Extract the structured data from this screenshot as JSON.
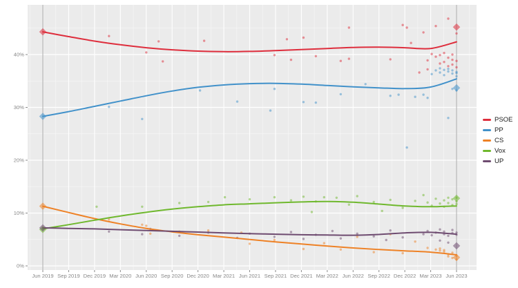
{
  "chart": {
    "panel_bg": "#ebebeb",
    "grid_major_color": "#ffffff",
    "grid_minor_color": "#ffffff",
    "election_vline_color": "#ababab",
    "axis_text_color": "#878787",
    "tick_mark_color": "#888888",
    "legend_text_color": "#1a1a1a"
  },
  "chart_data": {
    "type": "scatter",
    "subtype": "poll-scatter-with-smoothed-trend-lines",
    "title": "",
    "xlabel": "",
    "ylabel": "",
    "grid": true,
    "legend_position": "right",
    "x_ticks": [
      "Jun 2019",
      "Sep 2019",
      "Dec 2019",
      "Mar 2020",
      "Jun 2020",
      "Sep 2020",
      "Dec 2020",
      "Mar 2021",
      "Jun 2021",
      "Sep 2021",
      "Dec 2021",
      "Mar 2022",
      "Jun 2022",
      "Sep 2022",
      "Dec 2022",
      "Mar 2023",
      "Jun 2023"
    ],
    "y_ticks": [
      {
        "label": "0%",
        "value": 0
      },
      {
        "label": "10%",
        "value": 10
      },
      {
        "label": "20%",
        "value": 20
      },
      {
        "label": "30%",
        "value": 30
      },
      {
        "label": "40%",
        "value": 40
      }
    ],
    "y_minor_ticks": [
      5,
      15,
      25,
      35,
      45
    ],
    "ylim": [
      0,
      49.4
    ],
    "elections": [
      {
        "date_label": "Jun 2019",
        "x": 0
      },
      {
        "date_label": "Jun 2023",
        "x": 1
      }
    ],
    "series": [
      {
        "name": "PSOE",
        "color": "#de2d3c",
        "trend": [
          44.3,
          43.4,
          42.55,
          41.85,
          41.3,
          40.9,
          40.65,
          40.55,
          40.6,
          40.75,
          40.95,
          41.15,
          41.35,
          41.4,
          41.3,
          41.15,
          42.4
        ],
        "election_results": [
          44.3,
          45.2
        ],
        "points": [
          [
            0.16,
            43.5
          ],
          [
            0.25,
            40.4
          ],
          [
            0.28,
            42.5
          ],
          [
            0.29,
            38.7
          ],
          [
            0.39,
            42.6
          ],
          [
            0.56,
            39.9
          ],
          [
            0.59,
            42.9
          ],
          [
            0.6,
            39.0
          ],
          [
            0.63,
            43.2
          ],
          [
            0.66,
            39.7
          ],
          [
            0.72,
            38.8
          ],
          [
            0.74,
            45.1
          ],
          [
            0.74,
            39.2
          ],
          [
            0.84,
            39.1
          ],
          [
            0.87,
            45.6
          ],
          [
            0.88,
            45.1
          ],
          [
            0.89,
            42.2
          ],
          [
            0.91,
            36.6
          ],
          [
            0.92,
            44.2
          ],
          [
            0.93,
            37.2
          ],
          [
            0.93,
            38.9
          ],
          [
            0.94,
            40.1
          ],
          [
            0.95,
            39.6
          ],
          [
            0.95,
            45.4
          ],
          [
            0.96,
            38.3
          ],
          [
            0.96,
            39.9
          ],
          [
            0.97,
            38.6
          ],
          [
            0.97,
            40.3
          ],
          [
            0.98,
            37.8
          ],
          [
            0.98,
            39.4
          ],
          [
            0.98,
            46.8
          ],
          [
            0.99,
            38.1
          ],
          [
            0.99,
            39.0
          ],
          [
            0.99,
            40.0
          ],
          [
            1,
            37.6
          ],
          [
            1,
            38.8
          ],
          [
            1,
            44.0
          ]
        ]
      },
      {
        "name": "PP",
        "color": "#4191ca",
        "trend": [
          28.3,
          29.2,
          30.2,
          31.2,
          32.2,
          33.1,
          33.8,
          34.25,
          34.5,
          34.55,
          34.4,
          34.15,
          33.9,
          33.7,
          33.55,
          33.85,
          35.4
        ],
        "election_results": [
          28.3,
          33.7
        ],
        "points": [
          [
            0.16,
            30.1
          ],
          [
            0.24,
            27.8
          ],
          [
            0.38,
            33.2
          ],
          [
            0.47,
            31.1
          ],
          [
            0.55,
            29.4
          ],
          [
            0.56,
            33.5
          ],
          [
            0.63,
            31.0
          ],
          [
            0.66,
            30.9
          ],
          [
            0.72,
            32.5
          ],
          [
            0.78,
            34.4
          ],
          [
            0.84,
            32.2
          ],
          [
            0.86,
            32.4
          ],
          [
            0.88,
            22.4
          ],
          [
            0.9,
            32.0
          ],
          [
            0.92,
            32.4
          ],
          [
            0.93,
            31.8
          ],
          [
            0.94,
            36.3
          ],
          [
            0.95,
            37.0
          ],
          [
            0.96,
            36.6
          ],
          [
            0.96,
            37.4
          ],
          [
            0.97,
            36.1
          ],
          [
            0.97,
            37.1
          ],
          [
            0.98,
            36.8
          ],
          [
            0.98,
            28.0
          ],
          [
            0.98,
            37.3
          ],
          [
            0.99,
            36.4
          ],
          [
            0.99,
            37.0
          ],
          [
            0.99,
            33.5
          ],
          [
            1,
            36.7
          ],
          [
            1,
            35.9
          ],
          [
            1,
            33.2
          ],
          [
            1,
            36.5
          ]
        ]
      },
      {
        "name": "CS",
        "color": "#ee8125",
        "trend": [
          11.3,
          10.1,
          8.95,
          7.95,
          7.1,
          6.45,
          5.9,
          5.45,
          5.0,
          4.55,
          4.15,
          3.75,
          3.4,
          3.1,
          2.85,
          2.6,
          2.1
        ],
        "election_results": [
          11.3,
          1.6
        ],
        "points": [
          [
            0.16,
            8.8
          ],
          [
            0.24,
            7.8
          ],
          [
            0.25,
            7.6
          ],
          [
            0.26,
            6.1
          ],
          [
            0.33,
            6.5
          ],
          [
            0.4,
            6.7
          ],
          [
            0.48,
            6.3
          ],
          [
            0.5,
            4.2
          ],
          [
            0.56,
            4.9
          ],
          [
            0.63,
            3.2
          ],
          [
            0.68,
            4.3
          ],
          [
            0.72,
            3.1
          ],
          [
            0.76,
            5.5
          ],
          [
            0.8,
            2.6
          ],
          [
            0.84,
            6.0
          ],
          [
            0.87,
            2.4
          ],
          [
            0.9,
            4.6
          ],
          [
            0.93,
            3.4
          ],
          [
            0.95,
            3.1
          ],
          [
            0.96,
            2.9
          ],
          [
            0.96,
            3.3
          ],
          [
            0.97,
            2.7
          ],
          [
            0.97,
            3.0
          ],
          [
            0.98,
            2.2
          ],
          [
            0.98,
            1.8
          ],
          [
            0.99,
            2.5
          ],
          [
            0.99,
            1.5
          ],
          [
            1,
            1.9
          ],
          [
            1,
            1.2
          ]
        ]
      },
      {
        "name": "Vox",
        "color": "#6fb82d",
        "trend": [
          7.0,
          7.8,
          8.65,
          9.45,
          10.15,
          10.75,
          11.2,
          11.55,
          11.75,
          11.95,
          12.1,
          12.2,
          12.05,
          11.7,
          11.35,
          11.2,
          11.35
        ],
        "election_results": [
          6.9,
          12.8
        ],
        "points": [
          [
            0.13,
            11.2
          ],
          [
            0.24,
            11.2
          ],
          [
            0.33,
            11.9
          ],
          [
            0.4,
            12.1
          ],
          [
            0.44,
            13.0
          ],
          [
            0.5,
            12.6
          ],
          [
            0.56,
            13.0
          ],
          [
            0.6,
            12.4
          ],
          [
            0.63,
            13.1
          ],
          [
            0.65,
            10.2
          ],
          [
            0.66,
            12.2
          ],
          [
            0.68,
            13.0
          ],
          [
            0.71,
            12.9
          ],
          [
            0.74,
            11.6
          ],
          [
            0.76,
            13.2
          ],
          [
            0.8,
            12.1
          ],
          [
            0.82,
            10.4
          ],
          [
            0.84,
            12.5
          ],
          [
            0.87,
            11.0
          ],
          [
            0.9,
            12.3
          ],
          [
            0.92,
            13.4
          ],
          [
            0.93,
            12.0
          ],
          [
            0.94,
            11.4
          ],
          [
            0.95,
            12.7
          ],
          [
            0.96,
            11.8
          ],
          [
            0.97,
            12.4
          ],
          [
            0.97,
            11.2
          ],
          [
            0.98,
            12.9
          ],
          [
            0.98,
            11.9
          ],
          [
            0.99,
            12.6
          ],
          [
            0.99,
            11.5
          ],
          [
            1,
            12.2
          ],
          [
            1,
            12.9
          ],
          [
            1,
            11.7
          ]
        ]
      },
      {
        "name": "UP",
        "color": "#6e4b70",
        "trend": [
          7.2,
          7.1,
          7.0,
          6.85,
          6.7,
          6.55,
          6.4,
          6.25,
          6.1,
          6.0,
          5.9,
          5.85,
          5.8,
          5.95,
          6.25,
          6.35,
          6.0
        ],
        "election_results": [
          7.2,
          3.8
        ],
        "points": [
          [
            0.16,
            6.5
          ],
          [
            0.24,
            6.0
          ],
          [
            0.26,
            7.0
          ],
          [
            0.33,
            5.7
          ],
          [
            0.4,
            6.3
          ],
          [
            0.47,
            5.3
          ],
          [
            0.5,
            6.1
          ],
          [
            0.56,
            5.5
          ],
          [
            0.6,
            6.4
          ],
          [
            0.63,
            5.1
          ],
          [
            0.66,
            5.9
          ],
          [
            0.7,
            6.6
          ],
          [
            0.72,
            5.2
          ],
          [
            0.76,
            6.1
          ],
          [
            0.8,
            5.6
          ],
          [
            0.83,
            4.9
          ],
          [
            0.84,
            6.7
          ],
          [
            0.87,
            5.4
          ],
          [
            0.92,
            6.0
          ],
          [
            0.93,
            6.6
          ],
          [
            0.94,
            5.8
          ],
          [
            0.95,
            6.3
          ],
          [
            0.96,
            6.9
          ],
          [
            0.96,
            4.8
          ],
          [
            0.97,
            6.5
          ],
          [
            0.97,
            6.0
          ],
          [
            0.98,
            5.7
          ],
          [
            0.98,
            4.4
          ],
          [
            0.99,
            6.2
          ],
          [
            0.99,
            6.8
          ],
          [
            1,
            5.9
          ],
          [
            1,
            6.3
          ]
        ]
      }
    ]
  }
}
